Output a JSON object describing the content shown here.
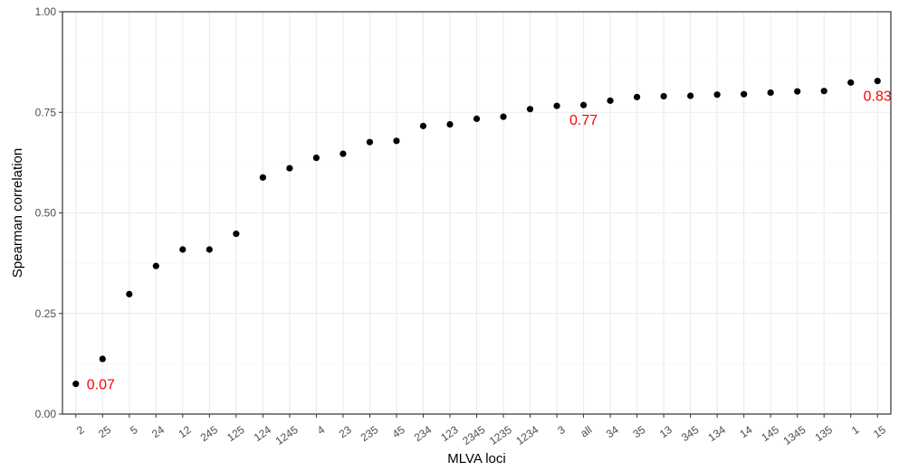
{
  "chart_data": {
    "type": "scatter",
    "xlabel": "MLVA loci",
    "ylabel": "Spearman correlation",
    "ylim": [
      0,
      1
    ],
    "yticks": [
      0,
      0.25,
      0.5,
      0.75,
      1
    ],
    "ytick_labels": [
      "0.00",
      "0.25",
      "0.50",
      "0.75",
      "1.00"
    ],
    "grid": true,
    "categories": [
      "2",
      "25",
      "5",
      "24",
      "12",
      "245",
      "125",
      "124",
      "1245",
      "4",
      "23",
      "235",
      "45",
      "234",
      "123",
      "2345",
      "1235",
      "1234",
      "3",
      "all",
      "34",
      "35",
      "13",
      "345",
      "134",
      "14",
      "145",
      "1345",
      "135",
      "1",
      "15"
    ],
    "values": [
      0.075,
      0.137,
      0.298,
      0.368,
      0.409,
      0.409,
      0.448,
      0.588,
      0.611,
      0.637,
      0.647,
      0.676,
      0.679,
      0.716,
      0.72,
      0.734,
      0.739,
      0.758,
      0.766,
      0.768,
      0.779,
      0.788,
      0.79,
      0.791,
      0.794,
      0.795,
      0.799,
      0.802,
      0.803,
      0.824,
      0.828
    ],
    "annotations": [
      {
        "text": "0.07",
        "category": "2",
        "position": "right",
        "color": "#ff0000"
      },
      {
        "text": "0.77",
        "category": "all",
        "position": "below",
        "color": "#ff0000"
      },
      {
        "text": "0.83",
        "category": "15",
        "position": "below",
        "color": "#ff0000"
      }
    ],
    "point_color": "#000000"
  }
}
